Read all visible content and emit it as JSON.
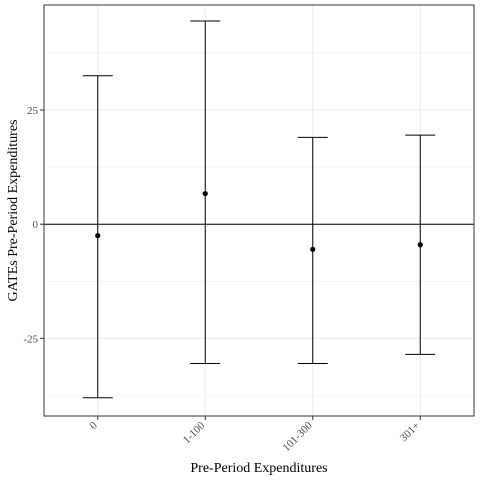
{
  "chart_data": {
    "type": "errorbar",
    "xlabel": "Pre-Period Expenditures",
    "ylabel": "GATEs Pre-Period Expenditures",
    "categories": [
      "0",
      "1-100",
      "101-300",
      "301+"
    ],
    "series": [
      {
        "estimate": [
          -2.5,
          6.7,
          -5.5,
          -4.5
        ],
        "lower": [
          -38.0,
          -30.5,
          -30.5,
          -28.5
        ],
        "upper": [
          32.5,
          44.5,
          19.0,
          19.5
        ]
      }
    ],
    "yticks": [
      -25,
      0,
      25
    ],
    "ylim": [
      -42,
      48
    ],
    "reference_line_y": 0,
    "grid": true,
    "theme": "bw"
  }
}
